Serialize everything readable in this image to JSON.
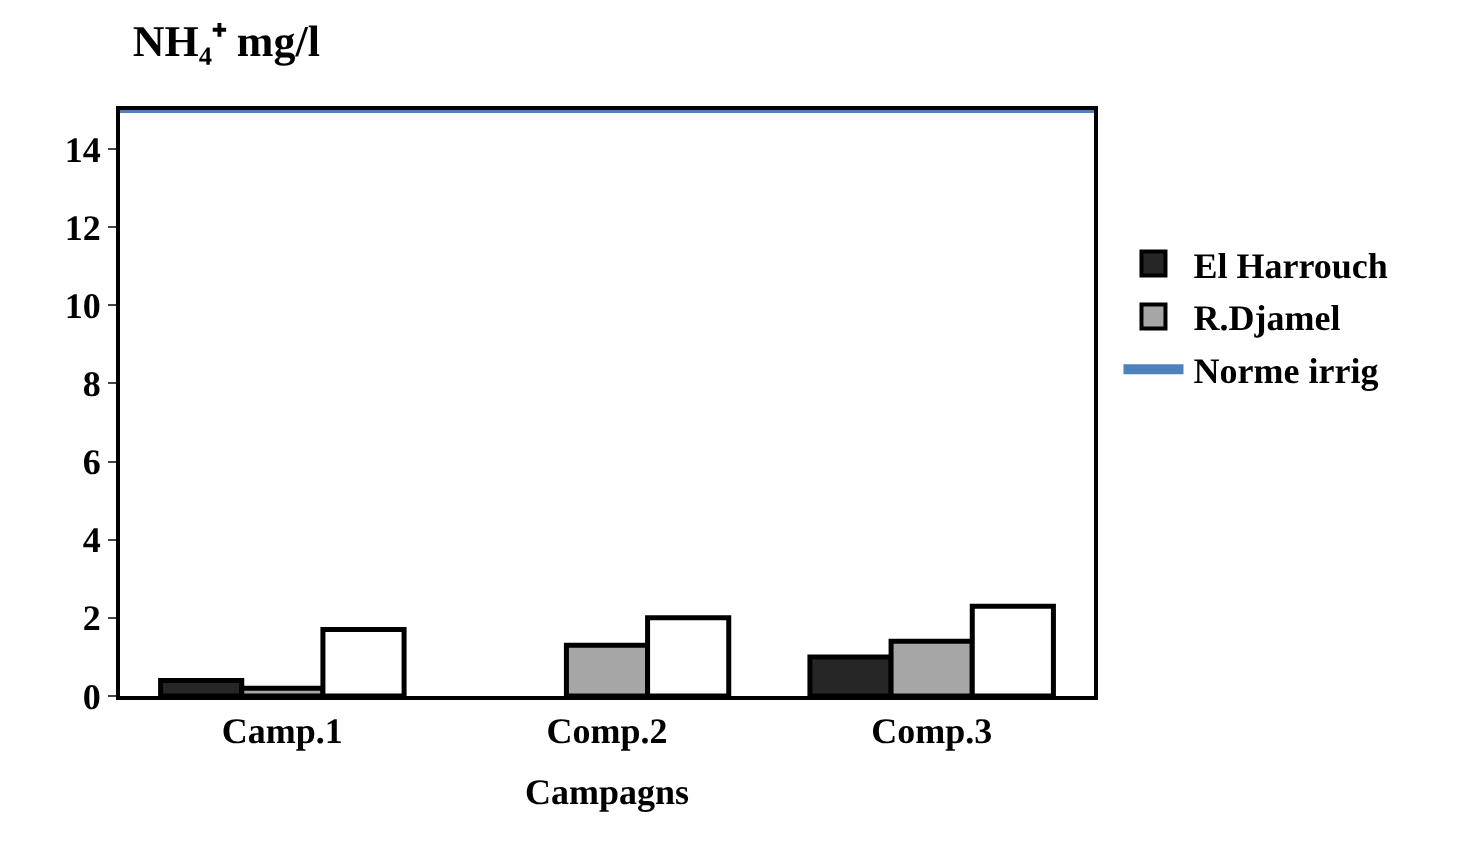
{
  "chart_data": {
    "type": "bar",
    "title": "NH₄⁺ mg/l",
    "xlabel": "Campagns",
    "categories": [
      "Camp.1",
      "Comp.2",
      "Comp.3"
    ],
    "series": [
      {
        "name": "El Harrouch",
        "color": "#262626",
        "values": [
          0.4,
          null,
          1.0
        ]
      },
      {
        "name": "R.Djamel",
        "color": "#a6a6a6",
        "values": [
          0.2,
          1.3,
          1.4
        ]
      },
      {
        "color": "#ffffff",
        "values": [
          1.7,
          2.0,
          2.3
        ]
      }
    ],
    "ref_lines": [
      {
        "axis": "y",
        "value": 15,
        "label": "Norme irrig",
        "color": "#4f81bd"
      }
    ],
    "ylim": [
      0,
      15
    ],
    "yticks": [
      0,
      2,
      4,
      6,
      8,
      10,
      12,
      14
    ],
    "legend": "right"
  }
}
